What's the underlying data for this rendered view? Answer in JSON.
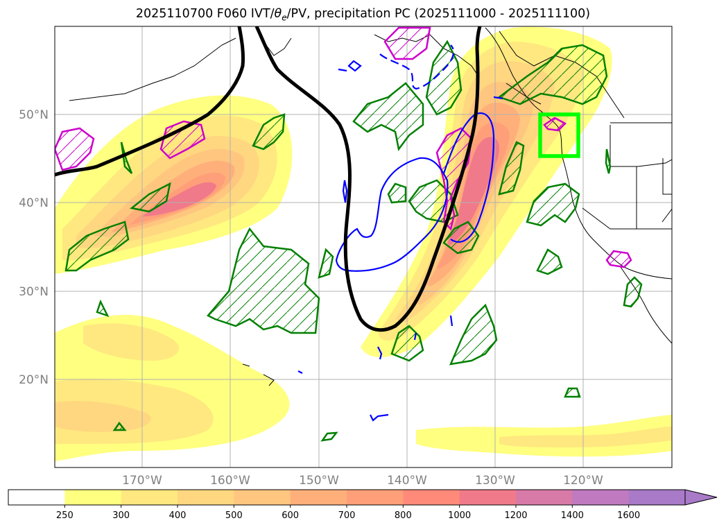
{
  "figure": {
    "title_prefix": "2025110700 F060 IVT/",
    "title_theta": "θ",
    "title_theta_sub": "e",
    "title_suffix": "/PV, precipitation PC (2025111000 - 2025111100)"
  },
  "map": {
    "lon_ticks": [
      "170°W",
      "160°W",
      "150°W",
      "140°W",
      "130°W",
      "120°W"
    ],
    "lat_ticks": [
      "50°N",
      "40°N",
      "30°N",
      "20°N"
    ],
    "grid": true,
    "ivt_levels": [
      250,
      300,
      400,
      500,
      600,
      700,
      800,
      1000,
      1200,
      1400,
      1600
    ],
    "ivt_colors": [
      "#ffffff",
      "#ffff80",
      "#ffe880",
      "#ffd780",
      "#ffc680",
      "#ffb07a",
      "#ff9f7a",
      "#ff8a7a",
      "#f07a8a",
      "#d77aa8",
      "#c07ac0",
      "#a97ac8"
    ],
    "contour_colors": {
      "pv": "#000000",
      "theta_e": "#0000ff",
      "precip_pc_positive": "#008000",
      "precip_pc_negative": "#cc00cc",
      "target_box": "#00ff00"
    }
  },
  "colorbar": {
    "labels": [
      "250",
      "300",
      "400",
      "500",
      "600",
      "700",
      "800",
      "1000",
      "1200",
      "1400",
      "1600"
    ],
    "extend": "max"
  }
}
